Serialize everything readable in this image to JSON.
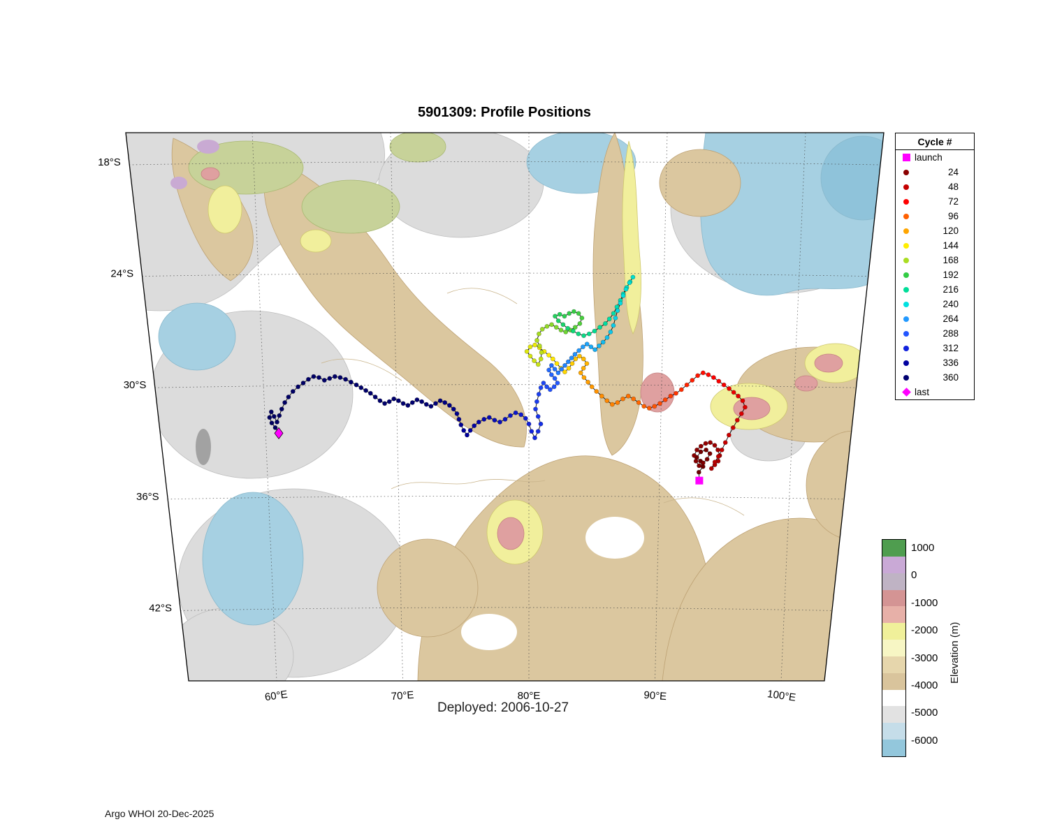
{
  "title": "5901309: Profile Positions",
  "deployed_label": "Deployed: 2006-10-27",
  "footer": "Argo WHOI 20-Dec-2025",
  "colors": {
    "magenta": "#FF00FF",
    "frame": "#000000",
    "ocean_white": "#FFFFFF"
  },
  "legend": {
    "title": "Cycle #",
    "entries": [
      {
        "label": "launch",
        "marker": "square",
        "color": "#FF00FF"
      },
      {
        "label": "24",
        "marker": "dot",
        "color": "#8B0000"
      },
      {
        "label": "48",
        "marker": "dot",
        "color": "#C40000"
      },
      {
        "label": "72",
        "marker": "dot",
        "color": "#FF0000"
      },
      {
        "label": "96",
        "marker": "dot",
        "color": "#FF6000"
      },
      {
        "label": "120",
        "marker": "dot",
        "color": "#FFA500"
      },
      {
        "label": "144",
        "marker": "dot",
        "color": "#FFEE00"
      },
      {
        "label": "168",
        "marker": "dot",
        "color": "#AADD22"
      },
      {
        "label": "192",
        "marker": "dot",
        "color": "#33CC44"
      },
      {
        "label": "216",
        "marker": "dot",
        "color": "#00DD99"
      },
      {
        "label": "240",
        "marker": "dot",
        "color": "#00E0E0"
      },
      {
        "label": "264",
        "marker": "dot",
        "color": "#2299FF"
      },
      {
        "label": "288",
        "marker": "dot",
        "color": "#2255FF"
      },
      {
        "label": "312",
        "marker": "dot",
        "color": "#1122DD"
      },
      {
        "label": "336",
        "marker": "dot",
        "color": "#0000A0"
      },
      {
        "label": "360",
        "marker": "dot",
        "color": "#000070"
      },
      {
        "label": "last",
        "marker": "diamond",
        "color": "#FF00FF"
      }
    ]
  },
  "colorbar": {
    "axis_label": "Elevation (m)",
    "ticks": [
      "1000",
      "0",
      "-1000",
      "-2000",
      "-3000",
      "-4000",
      "-5000",
      "-6000"
    ],
    "bands": [
      "#4F9D4F",
      "#C9A9D6",
      "#BFB3C4",
      "#D49494",
      "#E7B0A8",
      "#F0F09A",
      "#F7F6C4",
      "#E6D6AC",
      "#D9C49C",
      "#FFFFFF",
      "#E2E2E2",
      "#C5DDE9",
      "#93C7DC"
    ]
  },
  "chart_data": {
    "type": "scatter",
    "title": "5901309: Profile Positions",
    "xlabel": "",
    "ylabel": "",
    "x_ticks": [
      {
        "label": "60°E",
        "lon": 60
      },
      {
        "label": "70°E",
        "lon": 70
      },
      {
        "label": "80°E",
        "lon": 80
      },
      {
        "label": "90°E",
        "lon": 90
      },
      {
        "label": "100°E",
        "lon": 100
      }
    ],
    "y_ticks": [
      {
        "label": "18°S",
        "lat": 18
      },
      {
        "label": "24°S",
        "lat": 24
      },
      {
        "label": "30°S",
        "lat": 30
      },
      {
        "label": "36°S",
        "lat": 36
      },
      {
        "label": "42°S",
        "lat": 42
      }
    ],
    "lat_gridlines": [
      18,
      24,
      30,
      36,
      42
    ],
    "lon_gridlines": [
      60,
      70,
      80,
      90,
      100
    ],
    "grid": true,
    "legend_position": "top-right-outside",
    "cycle_range": [
      1,
      430
    ],
    "cycle_color_stops": [
      [
        0,
        "#650000"
      ],
      [
        24,
        "#8B0000"
      ],
      [
        48,
        "#C40000"
      ],
      [
        72,
        "#FF0000"
      ],
      [
        96,
        "#FF6000"
      ],
      [
        120,
        "#FFA500"
      ],
      [
        144,
        "#FFEE00"
      ],
      [
        168,
        "#AADD22"
      ],
      [
        192,
        "#33CC44"
      ],
      [
        216,
        "#00DD99"
      ],
      [
        240,
        "#00E0E0"
      ],
      [
        264,
        "#2299FF"
      ],
      [
        288,
        "#2255FF"
      ],
      [
        312,
        "#1122DD"
      ],
      [
        336,
        "#0000A0"
      ],
      [
        360,
        "#000070"
      ],
      [
        430,
        "#000060"
      ]
    ],
    "launch": {
      "label": "launch",
      "lon": 93.05,
      "lat": 35.15
    },
    "last": {
      "label": "last",
      "lon": 61.0,
      "lat": 32.6
    },
    "track": [
      [
        93.0,
        34.7
      ],
      [
        93.3,
        34.4
      ],
      [
        93.1,
        34.1
      ],
      [
        92.8,
        33.9
      ],
      [
        93.1,
        33.6
      ],
      [
        93.5,
        33.5
      ],
      [
        93.8,
        33.7
      ],
      [
        93.6,
        34.0
      ],
      [
        93.3,
        34.2
      ],
      [
        93.0,
        34.35
      ],
      [
        92.75,
        34.1
      ],
      [
        92.6,
        33.8
      ],
      [
        92.8,
        33.5
      ],
      [
        93.1,
        33.3
      ],
      [
        93.45,
        33.15
      ],
      [
        93.8,
        33.1
      ],
      [
        94.15,
        33.25
      ],
      [
        94.4,
        33.5
      ],
      [
        94.55,
        33.8
      ],
      [
        94.45,
        34.1
      ],
      [
        94.2,
        34.3
      ],
      [
        93.95,
        34.5
      ],
      [
        94.2,
        34.15
      ],
      [
        94.45,
        33.85
      ],
      [
        94.7,
        33.5
      ],
      [
        94.95,
        33.1
      ],
      [
        95.2,
        32.7
      ],
      [
        95.5,
        32.3
      ],
      [
        95.8,
        31.9
      ],
      [
        96.1,
        31.55
      ],
      [
        96.35,
        31.2
      ],
      [
        96.15,
        30.85
      ],
      [
        95.8,
        30.6
      ],
      [
        95.45,
        30.4
      ],
      [
        95.1,
        30.2
      ],
      [
        94.7,
        30.0
      ],
      [
        94.3,
        29.8
      ],
      [
        93.9,
        29.6
      ],
      [
        93.5,
        29.45
      ],
      [
        93.1,
        29.35
      ],
      [
        92.7,
        29.5
      ],
      [
        92.3,
        29.75
      ],
      [
        91.9,
        30.0
      ],
      [
        91.5,
        30.25
      ],
      [
        91.1,
        30.45
      ],
      [
        90.7,
        30.6
      ],
      [
        90.3,
        30.8
      ],
      [
        89.9,
        31.0
      ],
      [
        89.5,
        31.15
      ],
      [
        89.1,
        31.25
      ],
      [
        88.7,
        31.15
      ],
      [
        88.3,
        30.95
      ],
      [
        87.9,
        30.75
      ],
      [
        87.5,
        30.6
      ],
      [
        87.1,
        30.75
      ],
      [
        86.7,
        30.95
      ],
      [
        86.3,
        31.05
      ],
      [
        85.9,
        30.85
      ],
      [
        85.5,
        30.6
      ],
      [
        85.1,
        30.35
      ],
      [
        84.75,
        30.1
      ],
      [
        84.45,
        29.85
      ],
      [
        84.15,
        29.6
      ],
      [
        83.9,
        29.35
      ],
      [
        84.1,
        29.1
      ],
      [
        84.35,
        28.85
      ],
      [
        84.1,
        28.6
      ],
      [
        83.8,
        28.45
      ],
      [
        83.5,
        28.6
      ],
      [
        83.25,
        28.85
      ],
      [
        83.0,
        29.1
      ],
      [
        82.7,
        29.3
      ],
      [
        82.4,
        29.1
      ],
      [
        82.1,
        28.85
      ],
      [
        81.8,
        28.6
      ],
      [
        81.5,
        28.4
      ],
      [
        81.15,
        28.2
      ],
      [
        80.8,
        28.0
      ],
      [
        80.45,
        27.85
      ],
      [
        80.1,
        27.95
      ],
      [
        79.85,
        28.2
      ],
      [
        80.1,
        28.45
      ],
      [
        80.4,
        28.7
      ],
      [
        80.7,
        28.9
      ],
      [
        80.9,
        28.6
      ],
      [
        80.95,
        28.25
      ],
      [
        80.8,
        27.9
      ],
      [
        80.6,
        27.6
      ],
      [
        80.75,
        27.25
      ],
      [
        81.0,
        27.0
      ],
      [
        81.35,
        26.85
      ],
      [
        81.7,
        26.75
      ],
      [
        82.05,
        26.9
      ],
      [
        82.4,
        27.05
      ],
      [
        82.75,
        27.15
      ],
      [
        83.1,
        27.05
      ],
      [
        83.45,
        26.9
      ],
      [
        83.8,
        26.7
      ],
      [
        83.95,
        26.4
      ],
      [
        83.7,
        26.15
      ],
      [
        83.35,
        26.05
      ],
      [
        83.0,
        26.15
      ],
      [
        82.65,
        26.3
      ],
      [
        82.3,
        26.2
      ],
      [
        81.95,
        26.3
      ],
      [
        82.2,
        26.55
      ],
      [
        82.55,
        26.75
      ],
      [
        82.9,
        26.95
      ],
      [
        83.3,
        27.1
      ],
      [
        83.7,
        27.25
      ],
      [
        84.1,
        27.35
      ],
      [
        84.5,
        27.25
      ],
      [
        84.9,
        27.1
      ],
      [
        85.3,
        26.9
      ],
      [
        85.7,
        26.7
      ],
      [
        86.0,
        26.45
      ],
      [
        86.3,
        26.15
      ],
      [
        86.55,
        25.8
      ],
      [
        86.8,
        25.45
      ],
      [
        87.0,
        25.1
      ],
      [
        87.25,
        24.75
      ],
      [
        87.5,
        24.45
      ],
      [
        87.7,
        24.2
      ],
      [
        87.45,
        24.5
      ],
      [
        87.2,
        24.85
      ],
      [
        87.0,
        25.2
      ],
      [
        86.8,
        25.6
      ],
      [
        86.6,
        26.0
      ],
      [
        86.45,
        26.4
      ],
      [
        86.3,
        26.8
      ],
      [
        86.1,
        27.15
      ],
      [
        85.85,
        27.45
      ],
      [
        85.55,
        27.7
      ],
      [
        85.25,
        27.9
      ],
      [
        84.95,
        28.1
      ],
      [
        84.65,
        27.95
      ],
      [
        84.35,
        27.8
      ],
      [
        84.05,
        27.95
      ],
      [
        83.75,
        28.15
      ],
      [
        83.45,
        28.35
      ],
      [
        83.2,
        28.55
      ],
      [
        82.95,
        28.75
      ],
      [
        82.7,
        28.95
      ],
      [
        82.45,
        29.15
      ],
      [
        82.2,
        29.35
      ],
      [
        81.95,
        29.15
      ],
      [
        81.7,
        28.95
      ],
      [
        81.5,
        29.2
      ],
      [
        81.7,
        29.45
      ],
      [
        81.95,
        29.65
      ],
      [
        82.15,
        29.9
      ],
      [
        81.9,
        30.1
      ],
      [
        81.6,
        30.25
      ],
      [
        81.35,
        30.1
      ],
      [
        81.1,
        29.9
      ],
      [
        80.9,
        30.15
      ],
      [
        80.75,
        30.5
      ],
      [
        80.6,
        30.9
      ],
      [
        80.5,
        31.3
      ],
      [
        80.7,
        31.7
      ],
      [
        80.9,
        32.1
      ],
      [
        80.7,
        32.5
      ],
      [
        80.45,
        32.85
      ],
      [
        80.2,
        32.5
      ],
      [
        80.0,
        32.1
      ],
      [
        79.75,
        31.8
      ],
      [
        79.4,
        31.6
      ],
      [
        79.0,
        31.5
      ],
      [
        78.6,
        31.65
      ],
      [
        78.2,
        31.85
      ],
      [
        77.8,
        32.0
      ],
      [
        77.4,
        31.9
      ],
      [
        77.0,
        31.75
      ],
      [
        76.6,
        31.85
      ],
      [
        76.2,
        32.0
      ],
      [
        75.85,
        32.2
      ],
      [
        75.55,
        32.45
      ],
      [
        75.3,
        32.7
      ],
      [
        75.05,
        32.45
      ],
      [
        74.85,
        32.15
      ],
      [
        74.7,
        31.85
      ],
      [
        74.55,
        31.55
      ],
      [
        74.3,
        31.3
      ],
      [
        74.0,
        31.1
      ],
      [
        73.65,
        30.95
      ],
      [
        73.3,
        30.85
      ],
      [
        72.95,
        31.0
      ],
      [
        72.6,
        31.15
      ],
      [
        72.25,
        31.05
      ],
      [
        71.9,
        30.9
      ],
      [
        71.55,
        30.8
      ],
      [
        71.2,
        30.95
      ],
      [
        70.85,
        31.1
      ],
      [
        70.5,
        31.0
      ],
      [
        70.15,
        30.85
      ],
      [
        69.8,
        30.75
      ],
      [
        69.45,
        30.9
      ],
      [
        69.1,
        31.0
      ],
      [
        68.75,
        30.85
      ],
      [
        68.4,
        30.65
      ],
      [
        68.05,
        30.45
      ],
      [
        67.7,
        30.3
      ],
      [
        67.35,
        30.15
      ],
      [
        67.0,
        30.0
      ],
      [
        66.6,
        29.85
      ],
      [
        66.2,
        29.7
      ],
      [
        65.8,
        29.6
      ],
      [
        65.4,
        29.55
      ],
      [
        65.0,
        29.65
      ],
      [
        64.6,
        29.75
      ],
      [
        64.2,
        29.6
      ],
      [
        63.8,
        29.55
      ],
      [
        63.4,
        29.7
      ],
      [
        63.0,
        29.9
      ],
      [
        62.6,
        30.1
      ],
      [
        62.2,
        30.35
      ],
      [
        61.85,
        30.65
      ],
      [
        61.55,
        30.95
      ],
      [
        61.3,
        31.3
      ],
      [
        61.1,
        31.65
      ],
      [
        60.9,
        32.0
      ],
      [
        60.7,
        31.7
      ],
      [
        60.5,
        31.45
      ],
      [
        60.35,
        31.75
      ],
      [
        60.5,
        32.05
      ],
      [
        60.75,
        32.3
      ]
    ]
  }
}
